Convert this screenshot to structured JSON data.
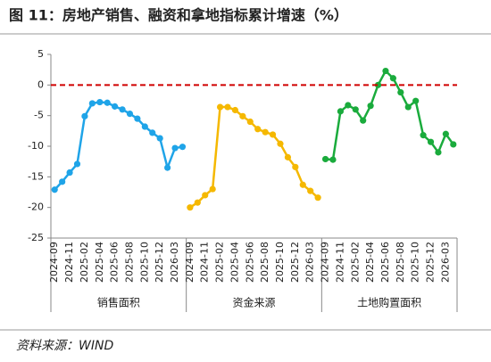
{
  "chart_data": {
    "type": "line",
    "title": "图 11：房地产销售、融资和拿地指标累计增速（%）",
    "source": "资料来源：WIND",
    "categories": [
      "2024-09",
      null,
      "2024-11",
      null,
      "2025-02",
      null,
      "2025-04",
      null,
      "2025-06",
      null,
      "2025-08",
      null,
      "2025-10",
      null,
      "2025-12",
      null,
      "2026-03",
      null
    ],
    "series": [
      {
        "name": "销售面积",
        "color": "#1fa4e8",
        "values": [
          -17.1,
          -15.8,
          -14.3,
          -12.9,
          -5.1,
          -3.0,
          -2.8,
          -2.9,
          -3.5,
          -4.0,
          -4.7,
          -5.5,
          -6.8,
          -7.8,
          -8.7,
          -13.5,
          -10.3,
          -10.1
        ]
      },
      {
        "name": "资金来源",
        "color": "#f5b800",
        "values": [
          -20.0,
          -19.2,
          -18.0,
          -17.0,
          -3.6,
          -3.6,
          -4.1,
          -5.1,
          -6.0,
          -7.2,
          -7.7,
          -8.1,
          -9.6,
          -11.8,
          -13.4,
          -16.3,
          -17.3,
          -18.4
        ]
      },
      {
        "name": "土地购置面积",
        "color": "#1aab3c",
        "values": [
          -12.1,
          -12.2,
          -4.3,
          -3.3,
          -4.0,
          -5.8,
          -3.4,
          0.0,
          2.3,
          1.1,
          -1.2,
          -3.6,
          -2.6,
          -8.2,
          -9.3,
          -11.0,
          -8.0,
          -9.7
        ]
      }
    ],
    "ylim": [
      -25,
      5
    ],
    "yticks": [
      -25,
      -20,
      -15,
      -10,
      -5,
      0,
      5
    ],
    "reference_line": {
      "value": 0,
      "color": "#d00000"
    }
  }
}
